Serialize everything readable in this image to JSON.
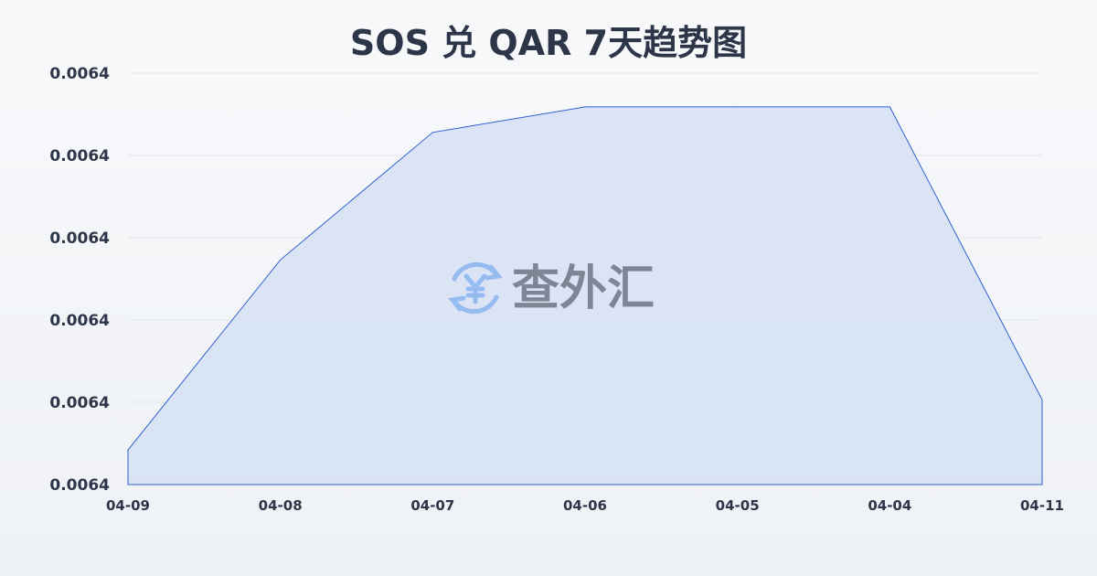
{
  "chart_data": {
    "type": "area",
    "title": "SOS 兑 QAR 7天趋势图",
    "xlabel": "",
    "ylabel": "",
    "categories": [
      "04-09",
      "04-08",
      "04-07",
      "04-06",
      "04-05",
      "04-04",
      "04-11"
    ],
    "series": [
      {
        "values": [
          0.0063842,
          0.0064073,
          0.0064228,
          0.0064259,
          0.0064259,
          0.0064259,
          0.0063903
        ]
      }
    ],
    "ylim": [
      0.00638,
      0.00643
    ],
    "yticks": [
      0.00638,
      0.00639,
      0.0064,
      0.00641,
      0.00642,
      0.00643
    ],
    "ytick_labels": [
      "0.0064",
      "0.0064",
      "0.0064",
      "0.0064",
      "0.0064",
      "0.0064"
    ],
    "grid": true,
    "legend": "none",
    "colors": {
      "line": "#2f5fd0",
      "fill": "#d5e0f5",
      "grid": "#e3e6ec",
      "text": "#2d3648"
    }
  },
  "watermark": {
    "text": "查外汇",
    "icon": "yuan-exchange-icon",
    "icon_color": "#8ab4f0"
  }
}
